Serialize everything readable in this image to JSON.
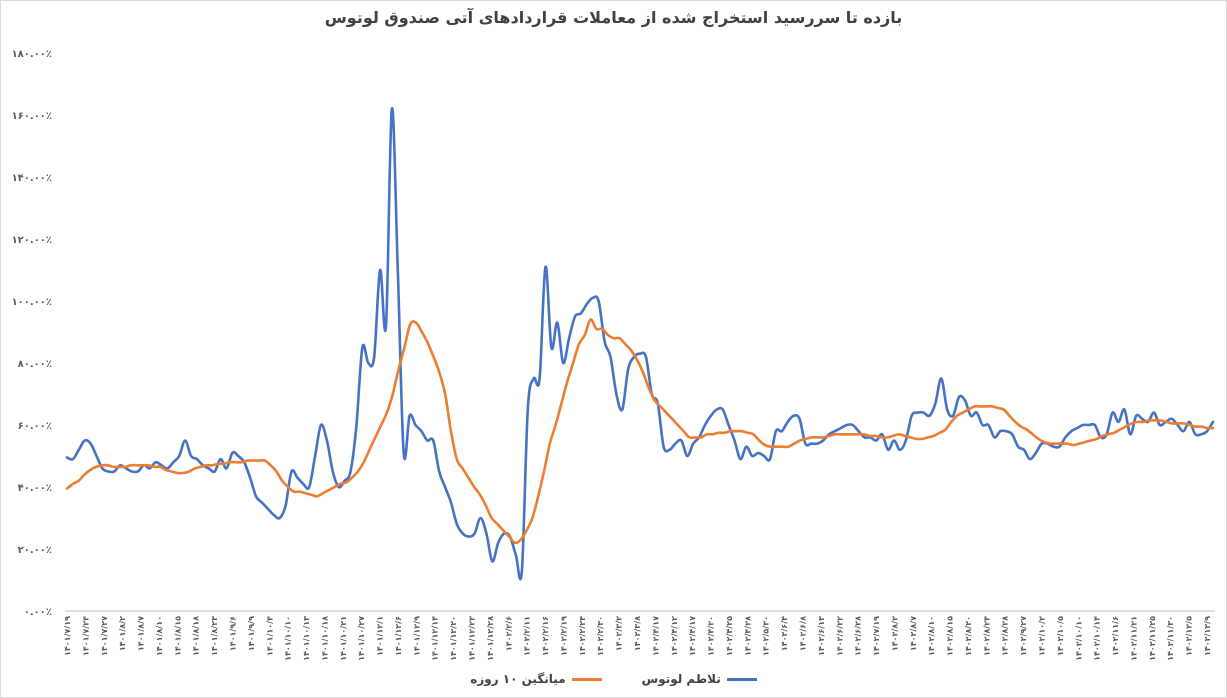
{
  "chart_data": {
    "type": "line",
    "title": "بازده تا سررسید استخراج شده از معاملات قراردادهای آتی صندوق لوتوس",
    "xlabel": "",
    "ylabel": "",
    "ylim": [
      0,
      180
    ],
    "yticks": [
      "۰.۰۰٪",
      "۲۰.۰۰٪",
      "۴۰.۰۰٪",
      "۶۰.۰۰٪",
      "۸۰.۰۰٪",
      "۱۰۰.۰۰٪",
      "۱۲۰.۰۰٪",
      "۱۴۰.۰۰٪",
      "۱۶۰.۰۰٪",
      "۱۸۰.۰۰٪"
    ],
    "x_labels": [
      "۱۴۰۱/۷/۱۹",
      "۱۴۰۱/۷/۲۴",
      "۱۴۰۱/۷/۲۷",
      "۱۴۰۱/۸/۲",
      "۱۴۰۱/۸/۷",
      "۱۴۰۱/۸/۱۰",
      "۱۴۰۱/۸/۱۵",
      "۱۴۰۱/۸/۱۸",
      "۱۴۰۱/۸/۲۳",
      "۱۴۰۱/۹/۶",
      "۱۴۰۱/۹/۹",
      "۱۴۰۱/۱۰/۴",
      "۱۴۰۱/۱۰/۱۰",
      "۱۴۰۱/۱۰/۱۳",
      "۱۴۰۱/۱۰/۱۸",
      "۱۴۰۱/۱۰/۲۱",
      "۱۴۰۱/۱۰/۲۷",
      "۱۴۰۱/۱۲/۱",
      "۱۴۰۱/۱۲/۶",
      "۱۴۰۱/۱۲/۹",
      "۱۴۰۱/۱۲/۱۴",
      "۱۴۰۱/۱۲/۲۰",
      "۱۴۰۱/۱۲/۲۳",
      "۱۴۰۱/۱۲/۲۸",
      "۱۴۰۲/۲/۶",
      "۱۴۰۲/۲/۱۱",
      "۱۴۰۲/۲/۱۶",
      "۱۴۰۲/۲/۱۹",
      "۱۴۰۲/۲/۲۴",
      "۱۴۰۲/۲/۳۰",
      "۱۴۰۲/۳/۲",
      "۱۴۰۲/۳/۸",
      "۱۴۰۲/۴/۱۷",
      "۱۴۰۲/۴/۱۲",
      "۱۴۰۲/۴/۱۷",
      "۱۴۰۲/۴/۲۰",
      "۱۴۰۲/۴/۲۵",
      "۱۴۰۲/۴/۲۸",
      "۱۴۰۲/۵/۳۰",
      "۱۴۰۲/۶/۴",
      "۱۴۰۲/۶/۸",
      "۱۴۰۲/۶/۱۳",
      "۱۴۰۲/۶/۲۲",
      "۱۴۰۲/۶/۲۸",
      "۱۴۰۲/۷/۱۹",
      "۱۴۰۲/۸/۲",
      "۱۴۰۲/۸/۷",
      "۱۴۰۲/۸/۱۰",
      "۱۴۰۲/۸/۱۵",
      "۱۴۰۲/۸/۲۰",
      "۱۴۰۲/۸/۲۴",
      "۱۴۰۲/۸/۲۸",
      "۱۴۰۲/۹/۲۷",
      "۱۴۰۲/۱۰/۲",
      "۱۴۰۲/۱۰/۵",
      "۱۴۰۲/۱۰/۱۰",
      "۱۴۰۲/۱۰/۱۴",
      "۱۴۰۲/۱۱/۶",
      "۱۴۰۲/۱۱/۲۱",
      "۱۴۰۲/۱۱/۲۵",
      "۱۴۰۲/۱۱/۳۰",
      "۱۴۰۲/۱۲/۵",
      "۱۴۰۲/۱۲/۹"
    ],
    "legend_position": "bottom",
    "grid": false,
    "series": [
      {
        "name": "تلاطم لوتوس",
        "color": "#4472C4",
        "values": [
          49.5,
          49,
          52,
          55,
          54,
          50,
          46,
          45,
          45,
          47,
          46,
          45,
          45,
          47,
          46,
          48,
          47,
          46,
          48,
          50,
          55,
          50,
          49,
          47,
          46,
          45,
          49,
          46,
          51,
          50,
          48,
          43,
          37,
          35,
          33,
          31,
          30,
          34,
          45,
          43,
          41,
          40,
          50,
          60,
          55,
          45,
          40,
          42,
          45,
          60,
          85,
          80,
          82,
          110,
          92,
          162,
          110,
          51,
          63,
          60,
          58,
          55,
          55,
          45,
          40,
          35,
          28,
          25,
          24,
          25,
          30,
          25,
          16,
          22,
          25,
          24,
          18,
          13,
          65,
          75,
          75,
          111,
          85,
          93,
          80,
          88,
          95,
          96,
          99,
          101,
          100,
          87,
          82,
          70,
          65,
          78,
          82,
          83,
          82,
          70,
          67,
          53,
          52,
          54,
          55,
          50,
          54,
          56,
          60,
          63,
          65,
          65,
          60,
          55,
          49,
          53,
          50,
          51,
          50,
          49,
          58,
          58,
          61,
          63,
          62,
          54,
          54,
          54,
          55,
          57,
          58,
          59,
          60,
          60,
          58,
          56,
          56,
          55,
          57,
          52,
          55,
          52,
          55,
          63,
          64,
          64,
          63,
          67,
          75,
          65,
          63,
          69,
          68,
          63,
          64,
          60,
          60,
          56,
          58,
          58,
          57,
          53,
          52,
          49,
          51,
          54,
          54,
          53,
          53,
          56,
          58,
          59,
          60,
          60,
          60,
          56,
          57,
          64,
          61,
          65,
          57,
          63,
          62,
          61,
          64,
          60,
          61,
          62,
          60,
          58,
          61,
          57,
          57,
          58,
          61
        ]
      },
      {
        "name": "میانگین ۱۰ روزه",
        "color": "#ED7D31",
        "values": [
          39.5,
          41,
          42,
          44,
          45.5,
          46.5,
          47,
          47,
          46.5,
          46.5,
          46.5,
          47,
          47,
          47,
          47,
          46.5,
          46.5,
          45.5,
          45,
          44.5,
          44.5,
          45,
          46,
          46.5,
          47,
          47,
          47.5,
          47.5,
          48,
          48,
          48,
          48.5,
          48.5,
          48.5,
          48.5,
          47,
          45,
          42,
          40,
          38.5,
          38.5,
          38,
          37.5,
          37,
          38,
          39,
          40,
          41,
          41.5,
          43,
          45,
          48,
          52,
          56,
          60,
          64,
          70,
          78,
          85,
          92.5,
          93,
          90,
          86.5,
          82,
          77,
          70,
          58,
          49,
          46,
          43,
          40,
          37.5,
          34,
          30,
          28,
          26,
          24,
          22,
          23,
          26,
          30,
          37,
          45,
          54,
          60,
          67,
          74,
          80,
          86,
          89,
          94,
          91,
          91,
          89,
          88,
          88,
          86,
          84,
          81,
          77,
          72,
          68,
          66,
          64,
          62,
          60,
          58,
          56,
          56,
          56,
          57,
          57,
          57.5,
          57.5,
          58,
          58,
          58,
          57.5,
          57,
          55,
          53.5,
          53,
          53,
          53,
          53,
          54,
          55,
          55.5,
          56,
          56,
          56,
          56.5,
          57,
          57,
          57,
          57,
          57,
          57,
          56.5,
          56.5,
          56,
          56,
          56.5,
          57,
          56.5,
          56,
          55.5,
          55.5,
          56,
          56.5,
          57.5,
          58.5,
          61,
          63,
          64,
          65,
          66,
          66,
          66,
          66,
          65.5,
          65,
          63,
          61,
          59.5,
          58.5,
          57,
          55.5,
          54.5,
          54,
          54,
          54,
          54,
          53.5,
          54,
          54.5,
          55,
          55.5,
          56.5,
          57,
          57.5,
          58.5,
          59.5,
          60.5,
          61,
          61,
          61.5,
          61.5,
          61.5,
          61,
          60.5,
          60.5,
          60.5,
          60,
          59.5,
          59.5,
          59,
          59
        ]
      }
    ]
  }
}
